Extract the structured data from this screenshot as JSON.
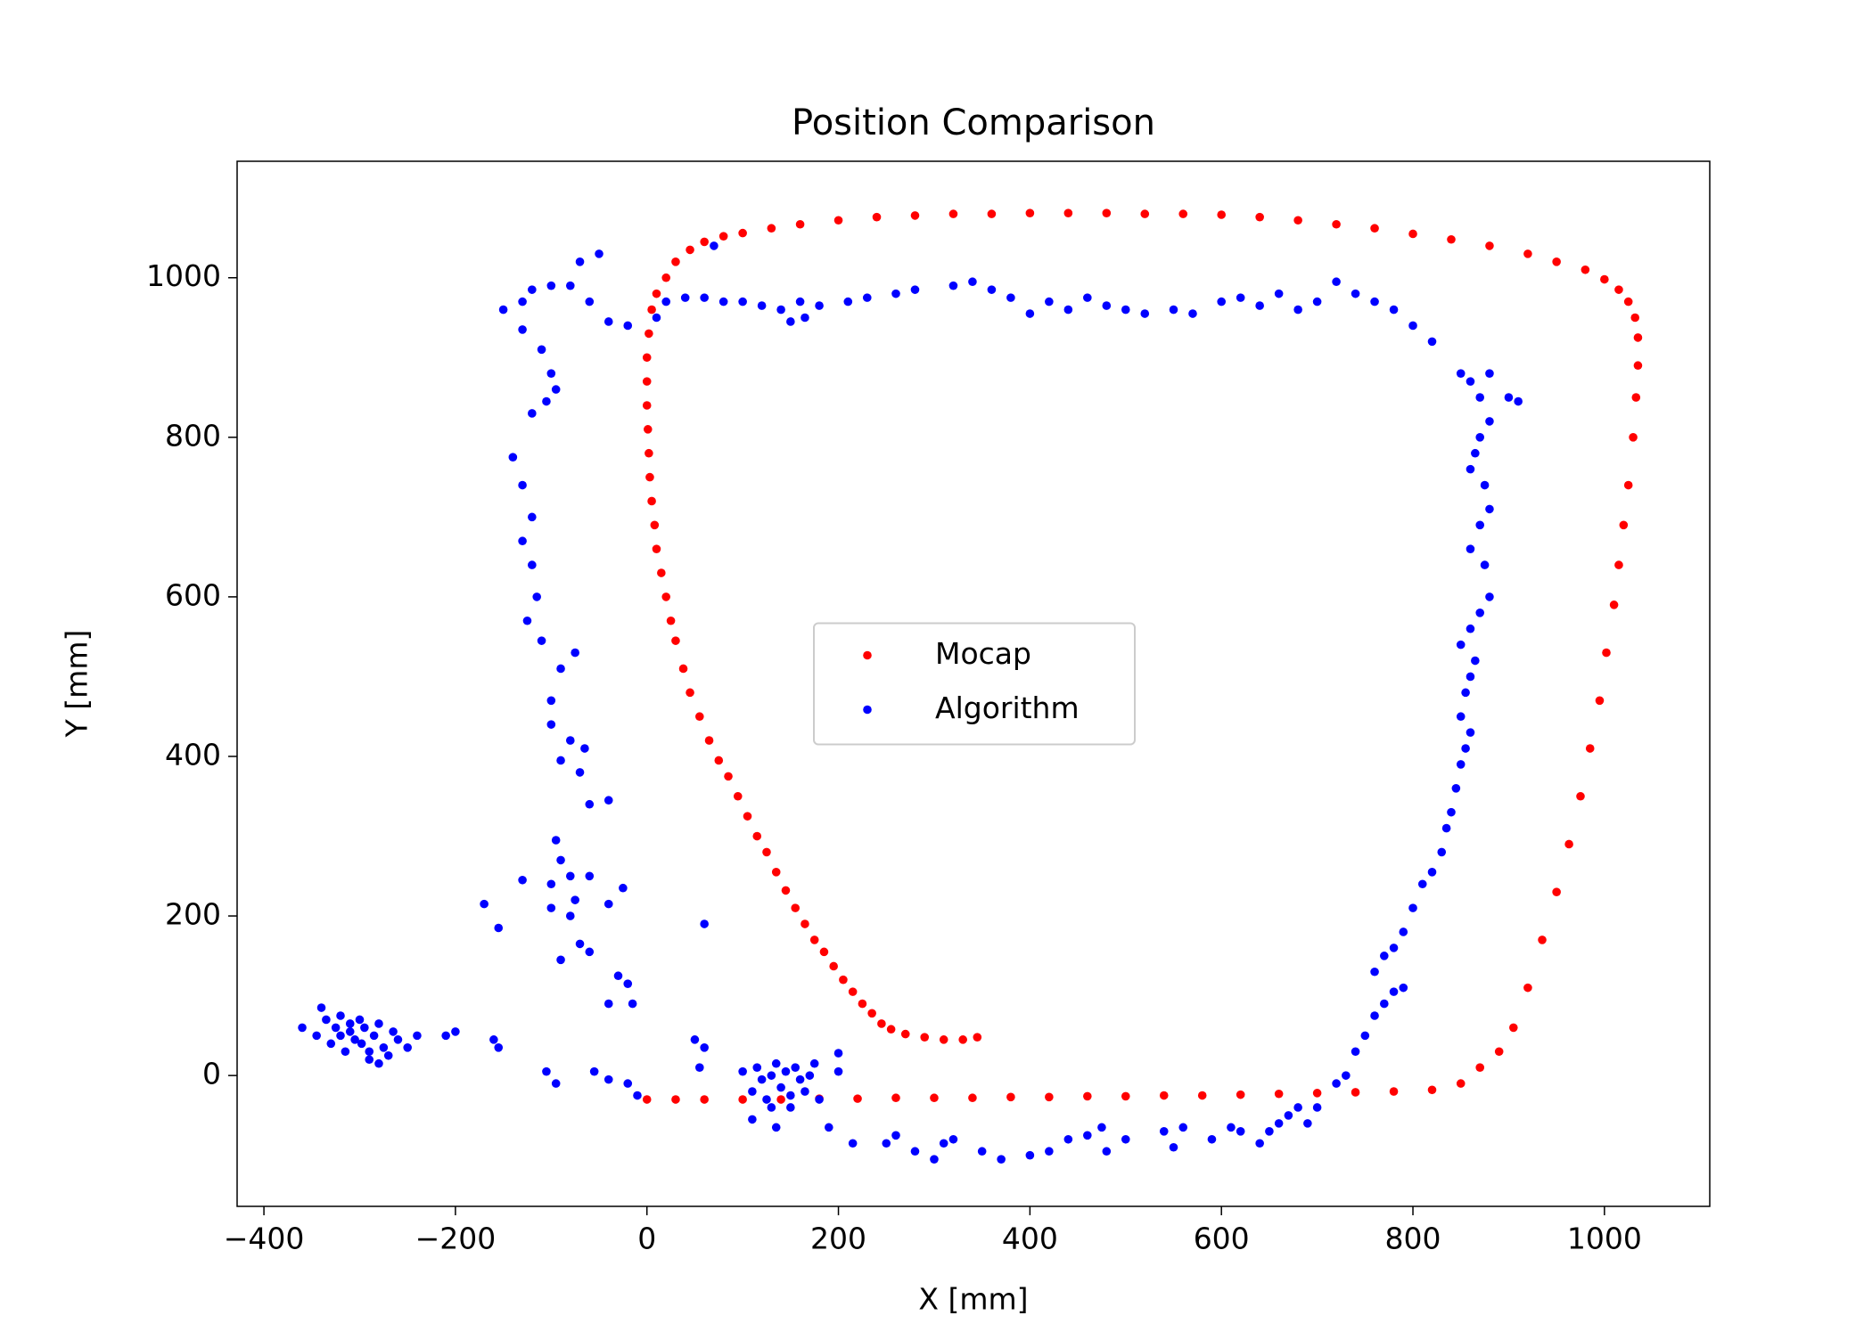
{
  "chart_data": {
    "type": "scatter",
    "title": "Position Comparison",
    "xlabel": "X [mm]",
    "ylabel": "Y [mm]",
    "xlim": [
      -428,
      1110
    ],
    "ylim": [
      -164,
      1146
    ],
    "xticks": [
      {
        "value": -400,
        "label": "−400"
      },
      {
        "value": -200,
        "label": "−200"
      },
      0,
      200,
      400,
      600,
      800,
      1000
    ],
    "yticks": [
      0,
      200,
      400,
      600,
      800,
      1000
    ],
    "legend": "center",
    "series": [
      {
        "name": "Mocap",
        "color": "#ff0000",
        "x": [
          345,
          330,
          310,
          290,
          270,
          255,
          245,
          235,
          225,
          215,
          205,
          195,
          185,
          175,
          165,
          155,
          145,
          135,
          125,
          115,
          105,
          95,
          85,
          75,
          65,
          55,
          45,
          38,
          30,
          25,
          20,
          15,
          10,
          8,
          5,
          3,
          2,
          1,
          0,
          0,
          0,
          2,
          5,
          10,
          20,
          30,
          45,
          60,
          80,
          100,
          130,
          160,
          200,
          240,
          280,
          320,
          360,
          400,
          440,
          480,
          520,
          560,
          600,
          640,
          680,
          720,
          760,
          800,
          840,
          880,
          920,
          950,
          980,
          1000,
          1015,
          1025,
          1032,
          1035,
          1035,
          1033,
          1030,
          1025,
          1020,
          1015,
          1010,
          1002,
          995,
          985,
          975,
          963,
          950,
          935,
          920,
          905,
          890,
          870,
          850,
          820,
          780,
          740,
          700,
          660,
          620,
          580,
          540,
          500,
          460,
          420,
          380,
          340,
          300,
          260,
          220,
          180,
          140,
          100,
          60,
          30,
          0
        ],
        "y": [
          48,
          45,
          45,
          48,
          52,
          58,
          65,
          78,
          90,
          105,
          120,
          137,
          155,
          170,
          190,
          210,
          232,
          255,
          280,
          300,
          325,
          350,
          375,
          395,
          420,
          450,
          480,
          510,
          545,
          570,
          600,
          630,
          660,
          690,
          720,
          750,
          780,
          810,
          840,
          870,
          900,
          930,
          960,
          980,
          1000,
          1020,
          1035,
          1045,
          1052,
          1056,
          1062,
          1067,
          1072,
          1076,
          1078,
          1080,
          1080,
          1081,
          1081,
          1081,
          1080,
          1080,
          1079,
          1076,
          1072,
          1067,
          1062,
          1055,
          1048,
          1040,
          1030,
          1020,
          1010,
          998,
          985,
          970,
          950,
          925,
          890,
          850,
          800,
          740,
          690,
          640,
          590,
          530,
          470,
          410,
          350,
          290,
          230,
          170,
          110,
          60,
          30,
          10,
          -10,
          -18,
          -20,
          -21,
          -22,
          -23,
          -24,
          -25,
          -25,
          -26,
          -26,
          -27,
          -27,
          -28,
          -28,
          -28,
          -29,
          -29,
          -30,
          -30,
          -30,
          -30,
          -30
        ]
      },
      {
        "name": "Algorithm",
        "color": "#0000ff",
        "x": [
          -360,
          -345,
          -340,
          -335,
          -330,
          -325,
          -320,
          -315,
          -310,
          -305,
          -300,
          -298,
          -295,
          -290,
          -285,
          -280,
          -275,
          -270,
          -265,
          -260,
          -250,
          -240,
          -200,
          -210,
          -320,
          -310,
          -290,
          -280,
          -160,
          -155,
          -105,
          -95,
          -55,
          -40,
          -20,
          -10,
          60,
          50,
          55,
          100,
          110,
          115,
          120,
          125,
          130,
          135,
          140,
          145,
          150,
          155,
          160,
          165,
          170,
          175,
          180,
          130,
          150,
          110,
          135,
          190,
          200,
          200,
          215,
          250,
          260,
          280,
          300,
          310,
          320,
          350,
          370,
          400,
          420,
          440,
          460,
          475,
          480,
          500,
          540,
          550,
          560,
          590,
          610,
          620,
          640,
          650,
          660,
          670,
          680,
          690,
          700,
          720,
          730,
          740,
          750,
          760,
          770,
          780,
          790,
          760,
          770,
          780,
          790,
          800,
          810,
          820,
          830,
          835,
          840,
          845,
          850,
          855,
          860,
          850,
          855,
          860,
          865,
          850,
          860,
          870,
          880,
          875,
          860,
          870,
          880,
          875,
          860,
          865,
          870,
          880,
          870,
          860,
          900,
          910,
          880,
          850,
          820,
          800,
          780,
          760,
          740,
          720,
          700,
          680,
          660,
          640,
          620,
          600,
          570,
          550,
          520,
          500,
          480,
          460,
          440,
          420,
          400,
          380,
          360,
          340,
          320,
          280,
          260,
          230,
          210,
          180,
          165,
          160,
          150,
          140,
          120,
          100,
          80,
          70,
          60,
          40,
          20,
          10,
          -20,
          -40,
          -50,
          -60,
          -70,
          -80,
          -100,
          -120,
          -130,
          -150,
          -130,
          -110,
          -100,
          -95,
          -105,
          -120,
          -140,
          -130,
          -120,
          -130,
          -120,
          -115,
          -125,
          -110,
          -90,
          -75,
          -100,
          -100,
          -80,
          -65,
          -90,
          -70,
          -60,
          -40,
          -95,
          -90,
          -80,
          -60,
          -100,
          -130,
          -75,
          -40,
          -25,
          -80,
          -170,
          -155,
          -70,
          -60,
          -90,
          -30,
          -20,
          -40,
          -15,
          60,
          -100
        ],
        "y": [
          60,
          50,
          85,
          70,
          40,
          60,
          75,
          30,
          55,
          45,
          70,
          40,
          60,
          20,
          50,
          65,
          35,
          25,
          55,
          45,
          35,
          50,
          55,
          50,
          50,
          65,
          30,
          15,
          45,
          35,
          5,
          -10,
          5,
          -5,
          -10,
          -25,
          35,
          45,
          10,
          5,
          -20,
          10,
          -5,
          -30,
          0,
          15,
          -15,
          5,
          -25,
          10,
          -5,
          -20,
          0,
          15,
          -30,
          -40,
          -40,
          -55,
          -65,
          -65,
          28,
          5,
          -85,
          -85,
          -75,
          -95,
          -105,
          -85,
          -80,
          -95,
          -105,
          -100,
          -95,
          -80,
          -75,
          -65,
          -95,
          -80,
          -70,
          -90,
          -65,
          -80,
          -65,
          -70,
          -85,
          -70,
          -60,
          -50,
          -40,
          -60,
          -40,
          -10,
          0,
          30,
          50,
          75,
          90,
          105,
          110,
          130,
          150,
          160,
          180,
          210,
          240,
          255,
          280,
          310,
          330,
          360,
          390,
          410,
          430,
          450,
          480,
          500,
          520,
          540,
          560,
          580,
          600,
          640,
          660,
          690,
          710,
          740,
          760,
          780,
          800,
          820,
          850,
          870,
          850,
          845,
          880,
          880,
          920,
          940,
          960,
          970,
          980,
          995,
          970,
          960,
          980,
          965,
          975,
          970,
          955,
          960,
          955,
          960,
          965,
          975,
          960,
          970,
          955,
          975,
          985,
          995,
          990,
          985,
          980,
          975,
          970,
          965,
          950,
          970,
          945,
          960,
          965,
          970,
          970,
          1040,
          975,
          975,
          970,
          950,
          940,
          945,
          1030,
          970,
          1020,
          990,
          990,
          985,
          970,
          960,
          935,
          910,
          880,
          860,
          845,
          830,
          775,
          740,
          700,
          670,
          640,
          600,
          570,
          545,
          510,
          530,
          470,
          440,
          420,
          410,
          395,
          380,
          340,
          345,
          295,
          270,
          250,
          250,
          240,
          245,
          220,
          215,
          235,
          200,
          215,
          185,
          165,
          155,
          145,
          125,
          115,
          90,
          90,
          190,
          210
        ]
      }
    ]
  }
}
